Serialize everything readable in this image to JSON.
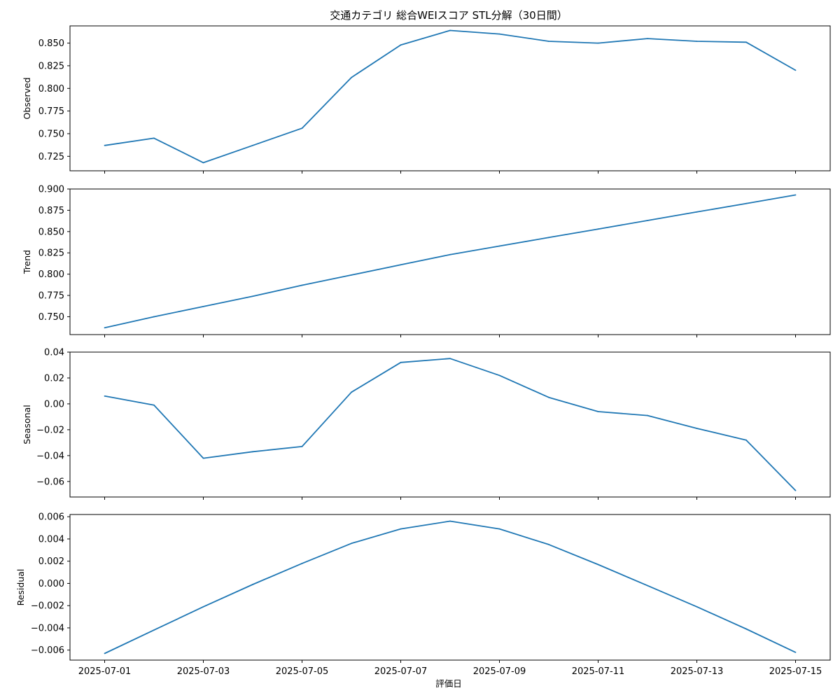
{
  "title": "交通カテゴリ 総合WEIスコア STL分解（30日間）",
  "xlabel": "評価日",
  "x_tick_labels": [
    "2025-07-01",
    "2025-07-03",
    "2025-07-05",
    "2025-07-07",
    "2025-07-09",
    "2025-07-11",
    "2025-07-13",
    "2025-07-15"
  ],
  "colors": {
    "line": "#1f77b4",
    "axes": "#000000",
    "background": "#ffffff"
  },
  "chart_data": [
    {
      "type": "line",
      "ylabel": "Observed",
      "x": [
        "2025-07-01",
        "2025-07-02",
        "2025-07-03",
        "2025-07-04",
        "2025-07-05",
        "2025-07-06",
        "2025-07-07",
        "2025-07-08",
        "2025-07-09",
        "2025-07-10",
        "2025-07-11",
        "2025-07-12",
        "2025-07-13",
        "2025-07-14",
        "2025-07-15"
      ],
      "values": [
        0.737,
        0.745,
        0.718,
        0.737,
        0.756,
        0.812,
        0.848,
        0.864,
        0.86,
        0.852,
        0.85,
        0.855,
        0.852,
        0.851,
        0.82
      ],
      "ylim": [
        0.709,
        0.869
      ],
      "yticks": [
        0.725,
        0.75,
        0.775,
        0.8,
        0.825,
        0.85
      ],
      "ytick_labels": [
        "0.725",
        "0.750",
        "0.775",
        "0.800",
        "0.825",
        "0.850"
      ]
    },
    {
      "type": "line",
      "ylabel": "Trend",
      "x": [
        "2025-07-01",
        "2025-07-02",
        "2025-07-03",
        "2025-07-04",
        "2025-07-05",
        "2025-07-06",
        "2025-07-07",
        "2025-07-08",
        "2025-07-09",
        "2025-07-10",
        "2025-07-11",
        "2025-07-12",
        "2025-07-13",
        "2025-07-14",
        "2025-07-15"
      ],
      "values": [
        0.737,
        0.75,
        0.762,
        0.774,
        0.787,
        0.799,
        0.811,
        0.823,
        0.833,
        0.843,
        0.853,
        0.863,
        0.873,
        0.883,
        0.893
      ],
      "ylim": [
        0.729,
        0.9
      ],
      "yticks": [
        0.75,
        0.775,
        0.8,
        0.825,
        0.85,
        0.875,
        0.9
      ],
      "ytick_labels": [
        "0.750",
        "0.775",
        "0.800",
        "0.825",
        "0.850",
        "0.875",
        "0.900"
      ]
    },
    {
      "type": "line",
      "ylabel": "Seasonal",
      "x": [
        "2025-07-01",
        "2025-07-02",
        "2025-07-03",
        "2025-07-04",
        "2025-07-05",
        "2025-07-06",
        "2025-07-07",
        "2025-07-08",
        "2025-07-09",
        "2025-07-10",
        "2025-07-11",
        "2025-07-12",
        "2025-07-13",
        "2025-07-14",
        "2025-07-15"
      ],
      "values": [
        0.006,
        -0.001,
        -0.042,
        -0.037,
        -0.033,
        0.009,
        0.032,
        0.035,
        0.022,
        0.005,
        -0.006,
        -0.009,
        -0.019,
        -0.028,
        -0.067
      ],
      "ylim": [
        -0.072,
        0.04
      ],
      "yticks": [
        -0.06,
        -0.04,
        -0.02,
        0.0,
        0.02,
        0.04
      ],
      "ytick_labels": [
        "−0.06",
        "−0.04",
        "−0.02",
        "0.00",
        "0.02",
        "0.04"
      ]
    },
    {
      "type": "line",
      "ylabel": "Residual",
      "x": [
        "2025-07-01",
        "2025-07-02",
        "2025-07-03",
        "2025-07-04",
        "2025-07-05",
        "2025-07-06",
        "2025-07-07",
        "2025-07-08",
        "2025-07-09",
        "2025-07-10",
        "2025-07-11",
        "2025-07-12",
        "2025-07-13",
        "2025-07-14",
        "2025-07-15"
      ],
      "values": [
        -0.0063,
        -0.0042,
        -0.0021,
        -0.0001,
        0.0018,
        0.0036,
        0.0049,
        0.0056,
        0.0049,
        0.0035,
        0.0017,
        -0.0002,
        -0.0021,
        -0.0041,
        -0.0062
      ],
      "ylim": [
        -0.0069,
        0.0062
      ],
      "yticks": [
        -0.006,
        -0.004,
        -0.002,
        0.0,
        0.002,
        0.004,
        0.006
      ],
      "ytick_labels": [
        "−0.006",
        "−0.004",
        "−0.002",
        "0.000",
        "0.002",
        "0.004",
        "0.006"
      ]
    }
  ]
}
